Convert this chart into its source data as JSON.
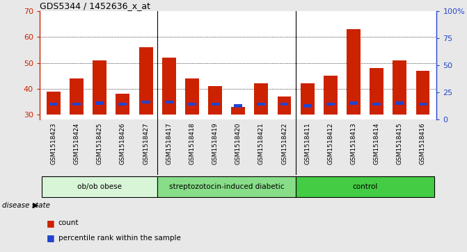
{
  "title": "GDS5344 / 1452636_x_at",
  "samples": [
    "GSM1518423",
    "GSM1518424",
    "GSM1518425",
    "GSM1518426",
    "GSM1518427",
    "GSM1518417",
    "GSM1518418",
    "GSM1518419",
    "GSM1518420",
    "GSM1518421",
    "GSM1518422",
    "GSM1518411",
    "GSM1518412",
    "GSM1518413",
    "GSM1518414",
    "GSM1518415",
    "GSM1518416"
  ],
  "counts": [
    39,
    44,
    51,
    38,
    56,
    52,
    44,
    41,
    33,
    42,
    37,
    42,
    45,
    63,
    48,
    51,
    47
  ],
  "percentile_pos": [
    33.4,
    33.4,
    33.8,
    33.4,
    34.2,
    34.2,
    33.4,
    33.4,
    32.8,
    33.4,
    33.4,
    32.8,
    33.4,
    33.8,
    33.4,
    33.8,
    33.4
  ],
  "percentile_height": [
    1.3,
    1.3,
    1.3,
    1.3,
    1.3,
    1.3,
    1.3,
    1.3,
    1.3,
    1.3,
    1.3,
    1.3,
    1.3,
    1.3,
    1.3,
    1.3,
    1.3
  ],
  "groups": [
    {
      "label": "ob/ob obese",
      "start": 0,
      "end": 5,
      "color": "#d8f5d8"
    },
    {
      "label": "streptozotocin-induced diabetic",
      "start": 5,
      "end": 11,
      "color": "#88dd88"
    },
    {
      "label": "control",
      "start": 11,
      "end": 17,
      "color": "#44cc44"
    }
  ],
  "bar_color": "#cc2200",
  "blue_color": "#2244cc",
  "baseline": 30,
  "ylim_left": [
    28,
    70
  ],
  "ylim_right": [
    0,
    100
  ],
  "yticks_left": [
    30,
    40,
    50,
    60,
    70
  ],
  "yticks_right": [
    0,
    25,
    50,
    75,
    100
  ],
  "bar_width": 0.6,
  "background_color": "#e8e8e8",
  "plot_bg": "#ffffff",
  "sample_bg": "#d0d0d0",
  "disease_state_label": "disease state",
  "grid_ticks": [
    40,
    50,
    60
  ],
  "group_separators": [
    4.5,
    10.5
  ]
}
